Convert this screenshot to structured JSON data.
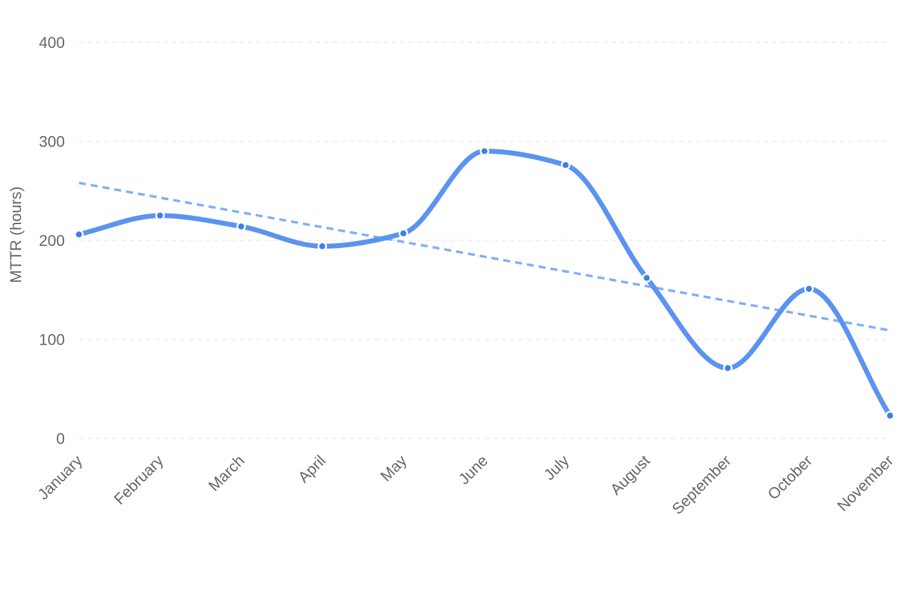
{
  "chart_data": {
    "type": "line",
    "title": "",
    "xlabel": "",
    "ylabel": "MTTR (hours)",
    "categories": [
      "January",
      "February",
      "March",
      "April",
      "May",
      "June",
      "July",
      "August",
      "September",
      "October",
      "November"
    ],
    "series": [
      {
        "values": [
          206,
          225,
          214,
          194,
          207,
          290,
          276,
          162,
          71,
          151,
          23
        ],
        "color": "#5b93f0",
        "smooth": true,
        "markers": true
      }
    ],
    "trendline": {
      "style": "dashed",
      "color": "#7fb0f5",
      "start": 258,
      "end": 109
    },
    "ylim": [
      0,
      400
    ],
    "yticks": [
      0,
      100,
      200,
      300,
      400
    ],
    "grid": true,
    "legend": "none"
  }
}
